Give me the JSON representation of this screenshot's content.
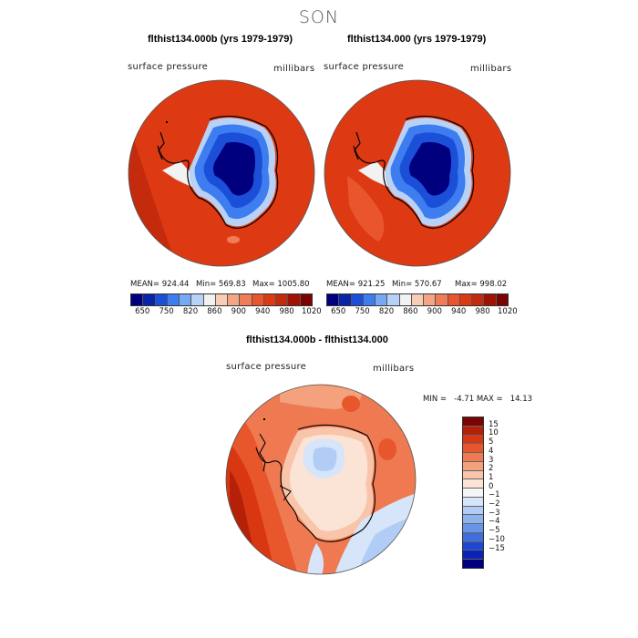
{
  "figure": {
    "season": "SON",
    "colors": {
      "coast": "#000000",
      "background": "#ffffff"
    }
  },
  "panels": [
    {
      "title": "flthist134.000b (yrs 1979-1979)",
      "variable": "surface pressure",
      "units": "millibars",
      "stats": {
        "mean": "MEAN= 924.44",
        "min": "Min= 569.83",
        "max": "Max= 1005.80"
      }
    },
    {
      "title": "flthist134.000 (yrs 1979-1979)",
      "variable": "surface pressure",
      "units": "millibars",
      "stats": {
        "mean": "MEAN= 921.25",
        "min": "Min= 570.67",
        "max": "Max= 998.02"
      }
    }
  ],
  "top_colorbar": {
    "colors": [
      "#00007f",
      "#0a24a8",
      "#1c4fd8",
      "#3d7df0",
      "#76a8f4",
      "#b8d2f7",
      "#f2f2f2",
      "#f8cdb6",
      "#f4a684",
      "#ef7d57",
      "#e9552d",
      "#dd3a14",
      "#c42a0c",
      "#9e1305",
      "#7a0403"
    ],
    "labels": [
      "650",
      "750",
      "820",
      "860",
      "900",
      "940",
      "980",
      "1020"
    ]
  },
  "difference": {
    "title": "flthist134.000b - flthist134.000",
    "variable": "surface pressure",
    "units": "millibars",
    "range": "MIN =   -4.71 MAX =   14.13"
  },
  "diff_colorbar": {
    "colors": [
      "#7a0403",
      "#b52108",
      "#d93612",
      "#e8562c",
      "#ef7a52",
      "#f4a17d",
      "#f8c5aa",
      "#fbe3d6",
      "#f5f5f5",
      "#d6e5f9",
      "#b2cdf5",
      "#8db3ef",
      "#6895e7",
      "#3f6fde",
      "#1f48d2",
      "#0b22b8",
      "#00007f"
    ],
    "labels": [
      "15",
      "10",
      "5",
      "4",
      "3",
      "2",
      "1",
      "0",
      "−1",
      "−2",
      "−3",
      "−4",
      "−5",
      "−10",
      "−15"
    ]
  }
}
